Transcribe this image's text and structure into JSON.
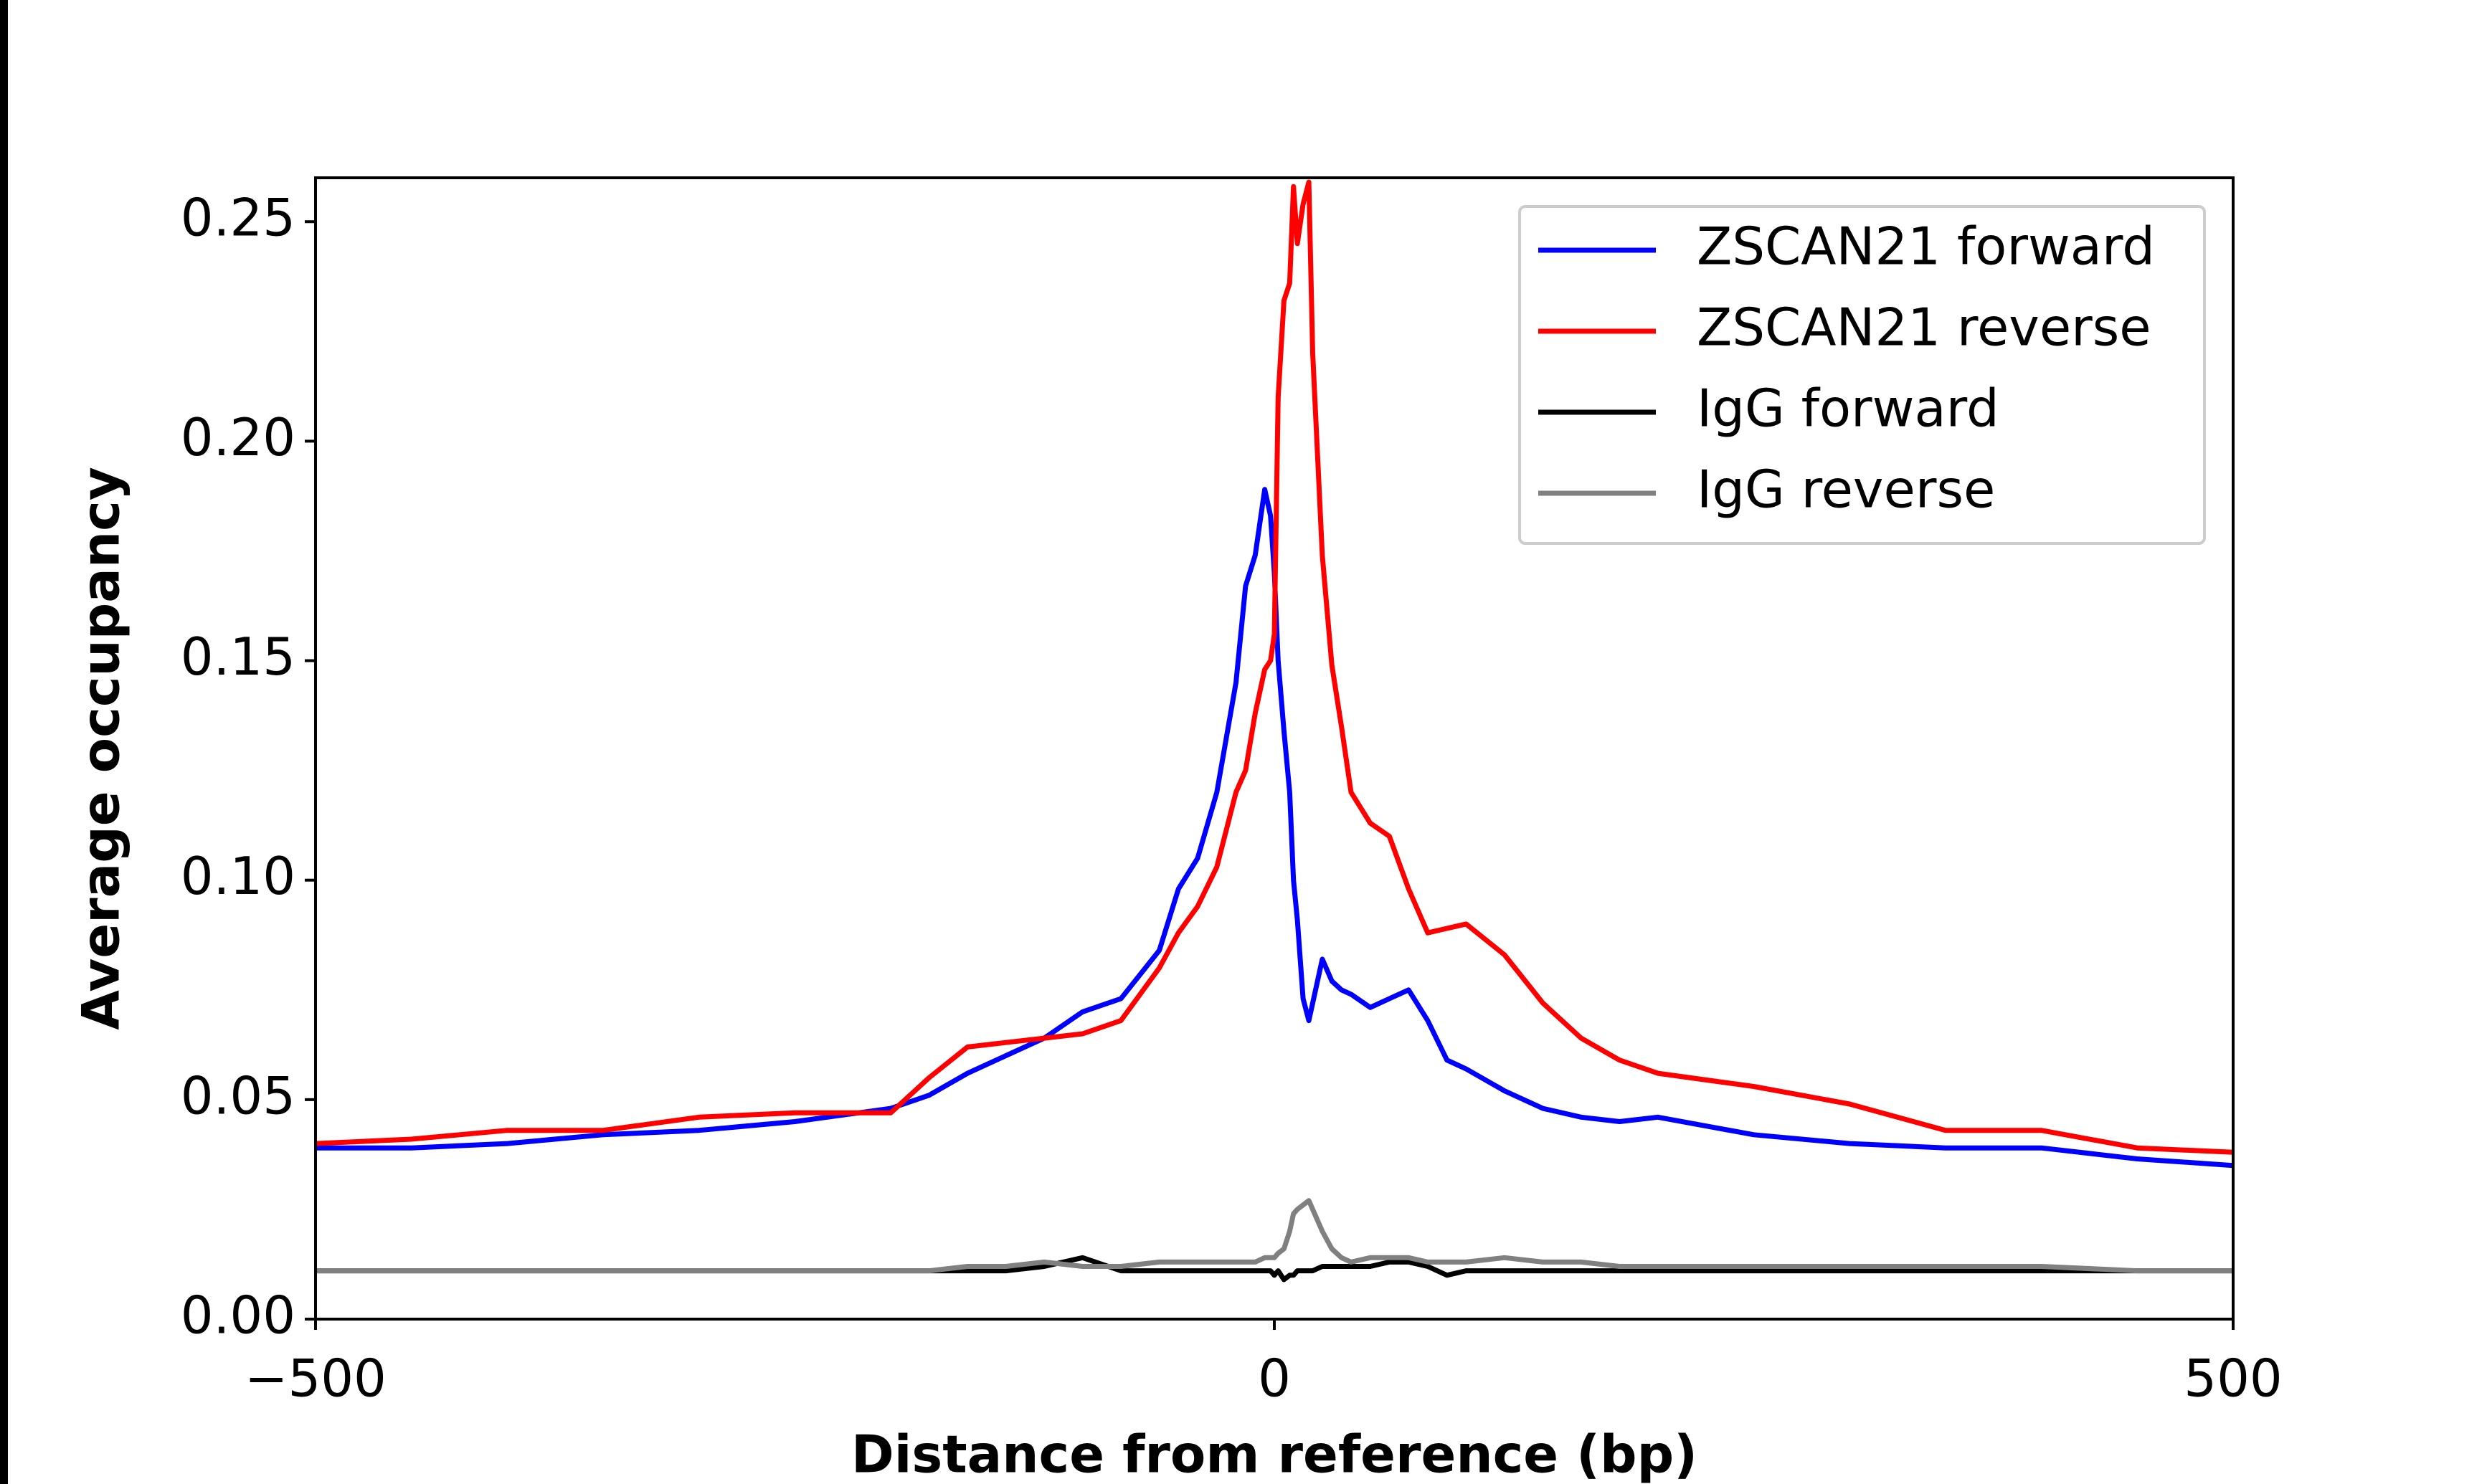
{
  "chart_data": {
    "type": "line",
    "xlabel": "Distance from reference (bp)",
    "ylabel": "Average occupancy",
    "xlim": [
      -500,
      500
    ],
    "ylim": [
      0,
      0.26
    ],
    "xticks": [
      {
        "value": -500,
        "label": "−500"
      },
      0,
      500
    ],
    "yticks": [
      {
        "value": 0,
        "label": "0.00"
      },
      0.05,
      {
        "value": 0.1,
        "label": "0.10"
      },
      0.15,
      {
        "value": 0.2,
        "label": "0.20"
      },
      0.25
    ],
    "legend": "upper right",
    "x": [
      -500,
      -450,
      -400,
      -350,
      -300,
      -250,
      -200,
      -180,
      -160,
      -140,
      -120,
      -100,
      -80,
      -60,
      -50,
      -40,
      -30,
      -20,
      -15,
      -10,
      -5,
      -2,
      0,
      2,
      5,
      8,
      10,
      12,
      15,
      18,
      20,
      25,
      30,
      35,
      40,
      50,
      60,
      70,
      80,
      90,
      100,
      120,
      140,
      160,
      180,
      200,
      250,
      300,
      350,
      400,
      450,
      500
    ],
    "series": [
      {
        "name": "ZSCAN21 forward",
        "color": "#0000ff",
        "values": [
          0.039,
          0.039,
          0.04,
          0.042,
          0.043,
          0.045,
          0.048,
          0.051,
          0.056,
          0.06,
          0.064,
          0.07,
          0.073,
          0.084,
          0.098,
          0.105,
          0.12,
          0.145,
          0.167,
          0.174,
          0.189,
          0.183,
          0.17,
          0.15,
          0.134,
          0.12,
          0.1,
          0.091,
          0.073,
          0.068,
          0.072,
          0.082,
          0.077,
          0.075,
          0.074,
          0.071,
          0.073,
          0.075,
          0.068,
          0.059,
          0.057,
          0.052,
          0.048,
          0.046,
          0.045,
          0.046,
          0.042,
          0.04,
          0.039,
          0.039,
          0.0365,
          0.035
        ]
      },
      {
        "name": "ZSCAN21 reverse",
        "color": "#ff0000",
        "values": [
          0.04,
          0.041,
          0.043,
          0.043,
          0.046,
          0.047,
          0.047,
          0.055,
          0.062,
          0.063,
          0.064,
          0.065,
          0.068,
          0.08,
          0.088,
          0.094,
          0.103,
          0.12,
          0.125,
          0.138,
          0.148,
          0.15,
          0.156,
          0.21,
          0.232,
          0.236,
          0.258,
          0.245,
          0.254,
          0.259,
          0.22,
          0.174,
          0.149,
          0.135,
          0.12,
          0.113,
          0.11,
          0.098,
          0.088,
          0.089,
          0.09,
          0.083,
          0.072,
          0.064,
          0.059,
          0.056,
          0.053,
          0.049,
          0.043,
          0.043,
          0.039,
          0.038
        ]
      },
      {
        "name": "IgG forward",
        "color": "#000000",
        "values": [
          0.011,
          0.011,
          0.011,
          0.011,
          0.011,
          0.011,
          0.011,
          0.011,
          0.011,
          0.011,
          0.012,
          0.014,
          0.011,
          0.011,
          0.011,
          0.011,
          0.011,
          0.011,
          0.011,
          0.011,
          0.011,
          0.011,
          0.01,
          0.011,
          0.009,
          0.01,
          0.01,
          0.011,
          0.011,
          0.011,
          0.011,
          0.012,
          0.012,
          0.012,
          0.012,
          0.012,
          0.013,
          0.013,
          0.012,
          0.01,
          0.011,
          0.011,
          0.011,
          0.011,
          0.011,
          0.011,
          0.011,
          0.011,
          0.011,
          0.011,
          0.011,
          0.011
        ]
      },
      {
        "name": "IgG reverse",
        "color": "#808080",
        "values": [
          0.011,
          0.011,
          0.011,
          0.011,
          0.011,
          0.011,
          0.011,
          0.011,
          0.012,
          0.012,
          0.013,
          0.012,
          0.012,
          0.013,
          0.013,
          0.013,
          0.013,
          0.013,
          0.013,
          0.013,
          0.014,
          0.014,
          0.014,
          0.015,
          0.016,
          0.02,
          0.024,
          0.025,
          0.026,
          0.027,
          0.025,
          0.02,
          0.016,
          0.014,
          0.013,
          0.014,
          0.014,
          0.014,
          0.013,
          0.013,
          0.013,
          0.014,
          0.013,
          0.013,
          0.012,
          0.012,
          0.012,
          0.012,
          0.012,
          0.012,
          0.011,
          0.011
        ]
      }
    ]
  }
}
